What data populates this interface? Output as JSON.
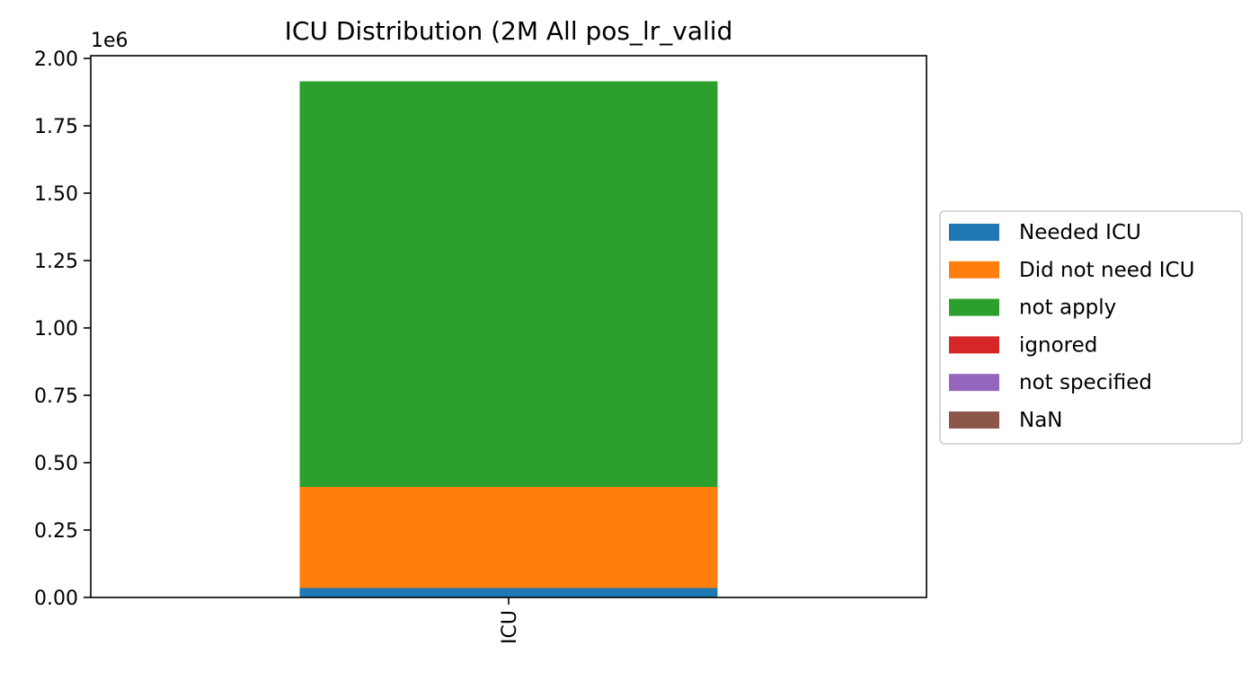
{
  "chart_data": {
    "type": "bar",
    "stacked": true,
    "title": "ICU Distribution (2M All pos_lr_valid",
    "xlabel": "",
    "ylabel": "",
    "y_offset_label": "1e6",
    "y_scale": 1000000,
    "categories": [
      "ICU"
    ],
    "ylim": [
      0,
      2010000
    ],
    "yticks": [
      0,
      250000,
      500000,
      750000,
      1000000,
      1250000,
      1500000,
      1750000,
      2000000
    ],
    "ytick_labels": [
      "0.00",
      "0.25",
      "0.50",
      "0.75",
      "1.00",
      "1.25",
      "1.50",
      "1.75",
      "2.00"
    ],
    "grid": false,
    "legend_position": "right",
    "series": [
      {
        "name": "Needed ICU",
        "color": "#1f77b4",
        "values": [
          35000
        ]
      },
      {
        "name": "Did not need ICU",
        "color": "#ff7f0e",
        "values": [
          375000
        ]
      },
      {
        "name": "not apply",
        "color": "#2ca02c",
        "values": [
          1505000
        ]
      },
      {
        "name": "ignored",
        "color": "#d62728",
        "values": [
          0
        ]
      },
      {
        "name": "not specified",
        "color": "#9467bd",
        "values": [
          0
        ]
      },
      {
        "name": "NaN",
        "color": "#8c564b",
        "values": [
          0
        ]
      }
    ]
  }
}
